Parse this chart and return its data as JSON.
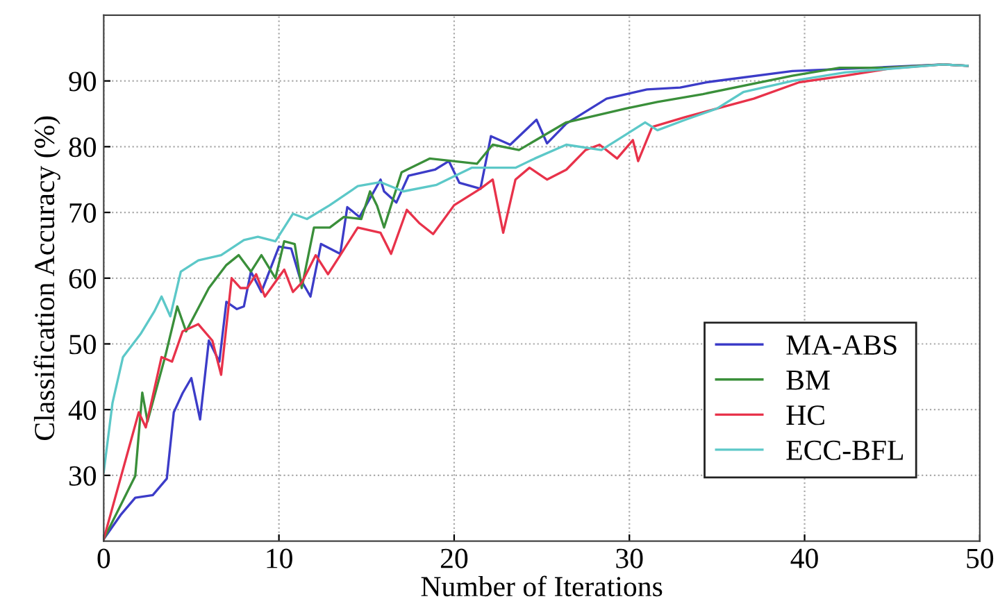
{
  "chart_data": {
    "type": "line",
    "xlabel": "Number of Iterations",
    "ylabel": "Classification Accuracy (%)",
    "xlim": [
      0,
      50
    ],
    "xticks": [
      0,
      10,
      20,
      30,
      40,
      50
    ],
    "ylim": [
      20,
      100
    ],
    "yticks": [
      30,
      40,
      50,
      60,
      70,
      80,
      90
    ],
    "grid": true,
    "legend": "bottom right",
    "line_style": "solid",
    "marker": "none",
    "series": [
      {
        "name": "MA-ABS",
        "color": "#3c3cc8",
        "x": [
          0,
          1.0,
          1.8,
          2.8,
          3.6,
          4.0,
          4.5,
          5.0,
          5.5,
          6.0,
          6.6,
          7.0,
          7.6,
          8.0,
          8.4,
          9.0,
          10.0,
          10.7,
          11.2,
          11.8,
          12.4,
          13.5,
          13.9,
          14.6,
          15.8,
          16.0,
          16.7,
          17.4,
          18.9,
          19.7,
          20.3,
          21.5,
          22.1,
          23.2,
          24.7,
          25.3,
          26.4,
          28.7,
          31.0,
          32.9,
          34.4,
          39.3,
          44.6,
          47.9,
          49.3
        ],
        "values": [
          20.3,
          24.1,
          26.6,
          27,
          29.5,
          39.6,
          42.5,
          44.8,
          38.5,
          50.5,
          47.3,
          56.4,
          55.3,
          55.7,
          61,
          57.9,
          64.8,
          64.5,
          60,
          57.2,
          65.2,
          63.7,
          70.8,
          69.3,
          75,
          73.2,
          71.5,
          75.6,
          76.5,
          77.8,
          74.5,
          73.6,
          81.6,
          80.3,
          84.1,
          80.5,
          83.5,
          87.3,
          88.7,
          89,
          89.8,
          91.5,
          92.1,
          92.5,
          92.3
        ]
      },
      {
        "name": "BM",
        "color": "#3a8f3a",
        "x": [
          0,
          1.8,
          2.2,
          2.5,
          3.5,
          4.2,
          4.7,
          6.0,
          7.0,
          7.7,
          8.4,
          9.0,
          9.8,
          10.3,
          10.9,
          11.3,
          12.0,
          12.9,
          13.7,
          14.7,
          15.2,
          15.6,
          16.0,
          17.0,
          18.6,
          21.3,
          22.2,
          23.7,
          26.4,
          29.8,
          31.6,
          34.2,
          39.3,
          42.0,
          44.6,
          47.9,
          49.3
        ],
        "values": [
          20.3,
          29.9,
          42.6,
          38.2,
          48,
          55.7,
          51.9,
          58.5,
          62,
          63.5,
          61,
          63.5,
          60,
          65.6,
          65.2,
          58.5,
          67.7,
          67.7,
          69.3,
          69,
          73.2,
          71,
          67.7,
          76.1,
          78.2,
          77.4,
          80.3,
          79.5,
          83.7,
          85.8,
          86.8,
          88,
          90.8,
          92,
          92,
          92.5,
          92.3
        ]
      },
      {
        "name": "HC",
        "color": "#e8324a",
        "x": [
          0,
          2.0,
          2.4,
          3.3,
          3.9,
          4.5,
          5.4,
          6.2,
          6.7,
          7.3,
          7.8,
          8.2,
          8.7,
          9.2,
          10.3,
          10.8,
          11.3,
          12.1,
          12.8,
          13.5,
          14.5,
          15.8,
          16.4,
          17.3,
          18.0,
          18.8,
          20.0,
          21.5,
          22.2,
          22.8,
          23.5,
          24.3,
          25.3,
          26.4,
          27.5,
          28.3,
          29.3,
          30.2,
          30.5,
          31.3,
          33.2,
          35.0,
          37.1,
          39.7,
          42.3,
          44.9,
          47.9,
          49.3
        ],
        "values": [
          20.3,
          39.6,
          37.3,
          48,
          47.3,
          51.9,
          53,
          50.5,
          45.3,
          60,
          58.5,
          58.5,
          60.6,
          57.2,
          61.3,
          57.9,
          59.3,
          63.5,
          60.6,
          63.5,
          67.7,
          66.9,
          63.7,
          70.4,
          68.4,
          66.7,
          71.1,
          73.6,
          75,
          66.9,
          75,
          76.8,
          75,
          76.5,
          79.5,
          80.3,
          78.2,
          81,
          77.8,
          83,
          84.5,
          85.8,
          87.3,
          89.8,
          90.8,
          91.9,
          92.5,
          92.3
        ]
      },
      {
        "name": "ECC-BFL",
        "color": "#5cc8c8",
        "x": [
          0,
          0.5,
          1.1,
          2.1,
          2.9,
          3.3,
          3.8,
          4.4,
          5.4,
          6.7,
          8.0,
          8.8,
          9.8,
          10.8,
          11.6,
          12.9,
          14.5,
          15.8,
          17.1,
          19.0,
          21.0,
          23.5,
          24.6,
          26.4,
          28.4,
          29.3,
          30.9,
          31.6,
          33.2,
          35.0,
          36.5,
          39.3,
          42.3,
          47.9,
          49.3
        ],
        "values": [
          30.5,
          41,
          48,
          51.5,
          55,
          57.2,
          54.2,
          61,
          62.7,
          63.5,
          65.8,
          66.3,
          65.6,
          69.8,
          69,
          71.1,
          74,
          74.6,
          73.2,
          74.2,
          76.8,
          76.8,
          78.2,
          80.3,
          79.5,
          81,
          83.7,
          82.5,
          84.1,
          85.8,
          88.3,
          90,
          91.3,
          92.5,
          92.3
        ]
      }
    ]
  }
}
